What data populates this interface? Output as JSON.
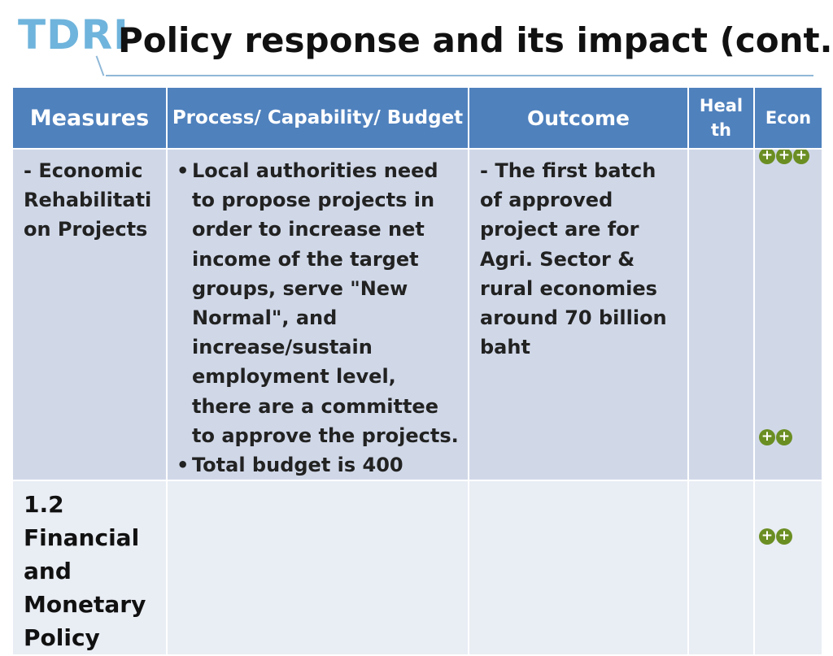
{
  "header": {
    "logo": "TDRI",
    "title": "Policy response and its impact (cont.)"
  },
  "table": {
    "headers": {
      "measures": "Measures",
      "process": "Process/ Capability/ Budget",
      "outcome": "Outcome",
      "health": "Heal th",
      "econ": "Econ"
    },
    "row1": {
      "measures": "- Economic Rehabilitati on Projects",
      "process_bullets": [
        "Local authorities need to propose projects in order to increase net income of the target groups, serve \"New Normal\", and increase/sustain employment level, there are a committee to approve the projects.",
        "Total budget is 400"
      ],
      "outcome": "- The first batch of approved project are for Agri. Sector & rural economies around 70 billion baht",
      "econ_impact_top": "+++",
      "econ_impact_bottom": "++"
    },
    "row2": {
      "measures": "1.2 Financial and Monetary Policy",
      "econ_impact": "++"
    }
  },
  "colors": {
    "header_blue": "#4f81bd",
    "row_blue_light": "#d0d8e8",
    "row_blue_lighter": "#e9edf4",
    "logo_blue": "#6fb4dc",
    "impact_green": "#6b8e23"
  }
}
